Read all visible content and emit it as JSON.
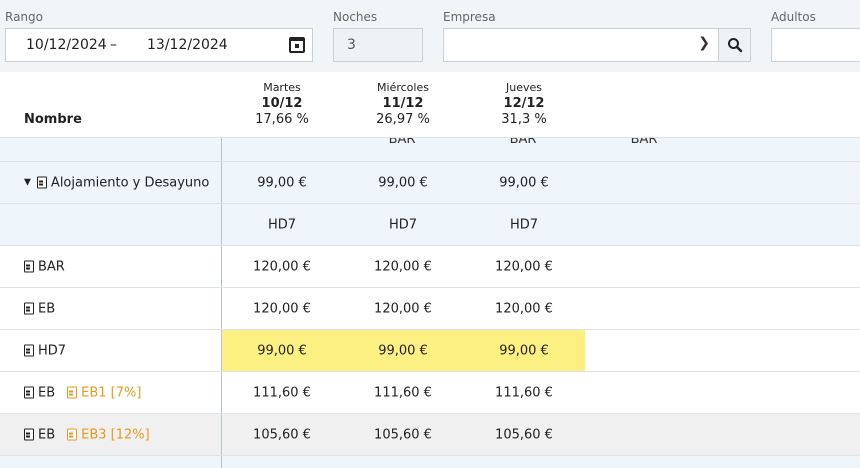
{
  "filters": {
    "range_label": "Rango",
    "range_start": "10/12/2024",
    "range_sep": "–",
    "range_end": "13/12/2024",
    "nights_label": "Noches",
    "nights_value": "3",
    "company_label": "Empresa",
    "company_value": "",
    "adults_label": "Adultos",
    "adults_value": ""
  },
  "table": {
    "name_header": "Nombre",
    "days": [
      {
        "weekday": "Martes",
        "date": "10/12",
        "occupancy": "17,66 %"
      },
      {
        "weekday": "Miércoles",
        "date": "11/12",
        "occupancy": "26,97 %"
      },
      {
        "weekday": "Jueves",
        "date": "12/12",
        "occupancy": "31,3 %"
      }
    ],
    "peek_row": [
      "BAR",
      "BAR",
      "BAR"
    ],
    "rows": [
      {
        "name": "Alojamiento y Desayuno",
        "values": [
          "99,00 €",
          "99,00 €",
          "99,00 €"
        ]
      },
      {
        "name": "",
        "values": [
          "HD7",
          "HD7",
          "HD7"
        ]
      },
      {
        "name": "BAR",
        "values": [
          "120,00 €",
          "120,00 €",
          "120,00 €"
        ]
      },
      {
        "name": "EB",
        "values": [
          "120,00 €",
          "120,00 €",
          "120,00 €"
        ]
      },
      {
        "name": "HD7",
        "values": [
          "99,00 €",
          "99,00 €",
          "99,00 €"
        ]
      },
      {
        "name": "EB",
        "tag": "EB1 [7%]",
        "values": [
          "111,60 €",
          "111,60 €",
          "111,60 €"
        ]
      },
      {
        "name": "EB",
        "tag": "EB3 [12%]",
        "values": [
          "105,60 €",
          "105,60 €",
          "105,60 €"
        ]
      }
    ]
  },
  "colors": {
    "highlight": "#fdf083",
    "tag": "#e89a20",
    "group_bg": "#eef5fb"
  }
}
